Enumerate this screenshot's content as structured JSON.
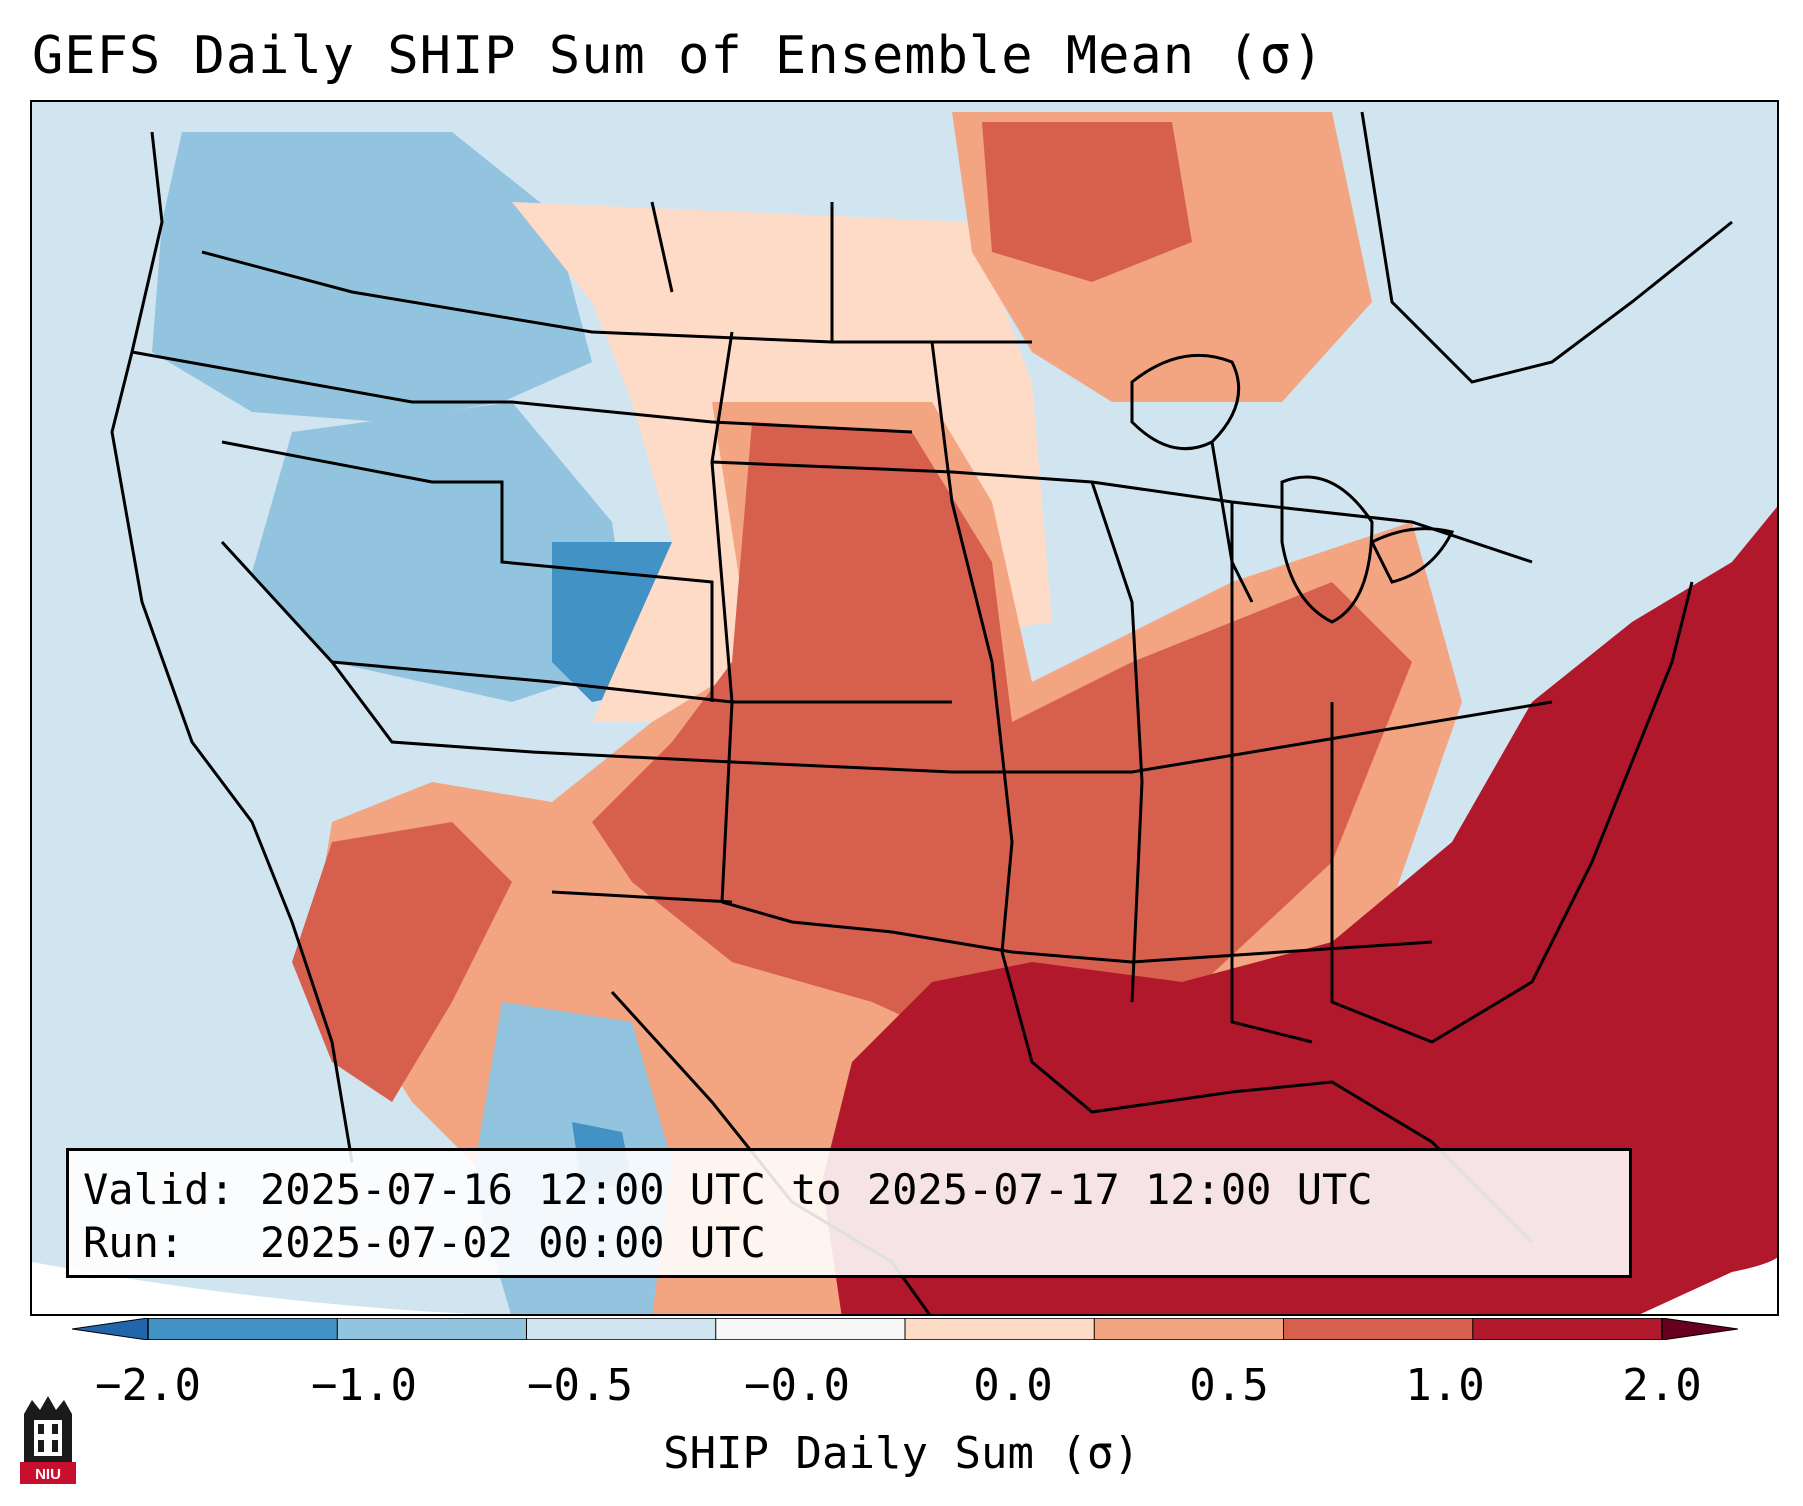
{
  "title": "GEFS Daily SHIP Sum of Ensemble Mean (σ)",
  "valid_line": "Valid: 2025-07-16 12:00 UTC to 2025-07-17 12:00 UTC",
  "run_line": "Run:   2025-07-02 00:00 UTC",
  "colorbar": {
    "label": "SHIP Daily Sum (σ)",
    "ticks": [
      "−2.0",
      "−1.0",
      "−0.5",
      "−0.0",
      "0.0",
      "0.5",
      "1.0",
      "2.0"
    ],
    "colors": [
      "#4392c5",
      "#93c4df",
      "#d1e5f0",
      "#f7f7f7",
      "#fddbc7",
      "#f3a582",
      "#d6604d",
      "#b2182b"
    ],
    "extend": "both"
  },
  "logo_text": "NIU",
  "colors": {
    "strong_negative": "#4392c5",
    "negative": "#93c4df",
    "weak_negative": "#d1e5f0",
    "weak_positive": "#fddbc7",
    "positive": "#f3a582",
    "strong_positive": "#d6604d",
    "extreme_positive": "#b2182b",
    "logo_red": "#c8102e"
  }
}
